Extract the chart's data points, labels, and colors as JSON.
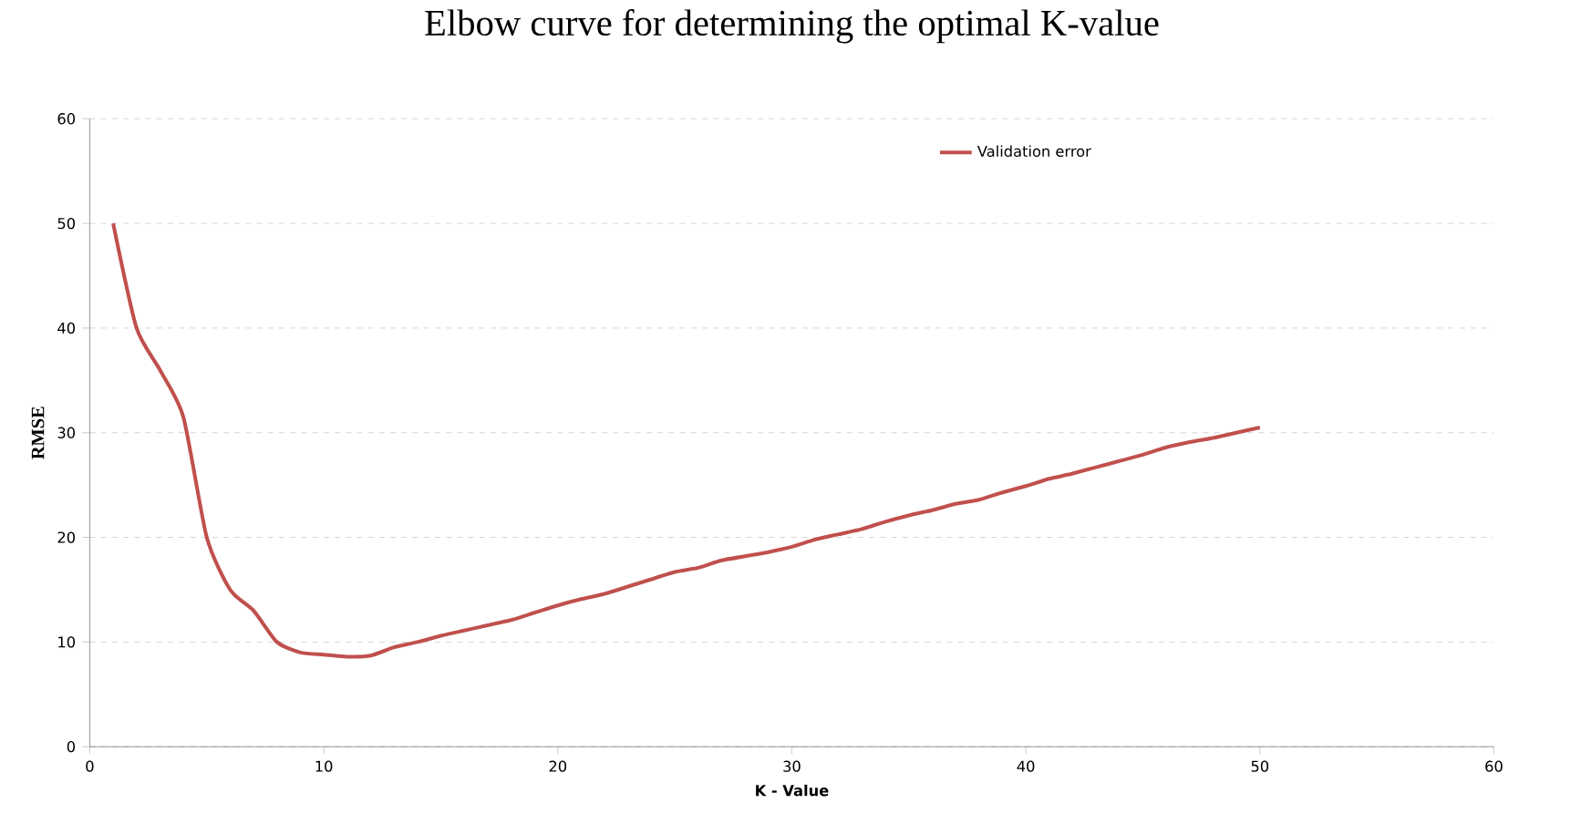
{
  "chart_data": {
    "type": "line",
    "title": "Elbow curve for determining the optimal K-value",
    "xlabel": "K - Value",
    "ylabel": "RMSE",
    "xlim": [
      0,
      60
    ],
    "xticks": [
      0,
      10,
      20,
      30,
      40,
      50,
      60
    ],
    "ylim": [
      0,
      60
    ],
    "yticks": [
      0,
      10,
      20,
      30,
      40,
      50,
      60
    ],
    "grid": "y",
    "legend": "top right",
    "marker": "none",
    "line_style": "solid",
    "x": [
      1,
      2,
      3,
      4,
      5,
      6,
      7,
      8,
      9,
      10,
      11,
      12,
      13,
      14,
      15,
      16,
      17,
      18,
      19,
      20,
      21,
      22,
      23,
      24,
      25,
      26,
      27,
      28,
      29,
      30,
      31,
      32,
      33,
      34,
      35,
      36,
      37,
      38,
      39,
      40,
      41,
      42,
      43,
      44,
      45,
      46,
      47,
      48,
      49,
      50
    ],
    "series": [
      {
        "name": "Validation error",
        "color": "#c0504d",
        "values": [
          50,
          40,
          36,
          31.5,
          20,
          15,
          13,
          10,
          9,
          8.8,
          8.6,
          8.7,
          9.5,
          10,
          10.6,
          11.1,
          11.6,
          12.1,
          12.8,
          13.5,
          14.1,
          14.6,
          15.3,
          16,
          16.7,
          17.1,
          17.8,
          18.2,
          18.6,
          19.1,
          19.8,
          20.3,
          20.8,
          21.5,
          22.1,
          22.6,
          23.2,
          23.6,
          24.3,
          24.9,
          25.6,
          26.1,
          26.7,
          27.3,
          27.9,
          28.6,
          29.1,
          29.5,
          30,
          30.5
        ]
      }
    ]
  }
}
